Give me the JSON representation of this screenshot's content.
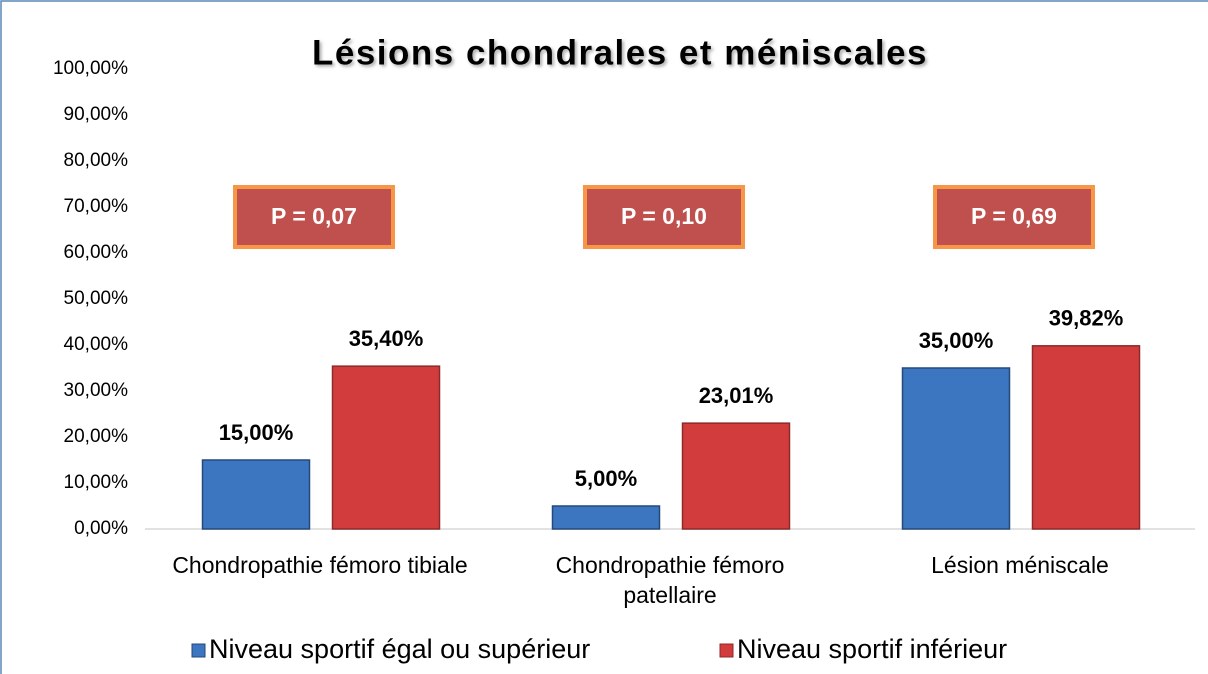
{
  "chart_data": {
    "type": "bar",
    "title": "Lésions chondrales et méniscales",
    "categories": [
      "Chondropathie fémoro tibiale",
      "Chondropathie fémoro patellaire",
      "Lésion méniscale"
    ],
    "series": [
      {
        "name": "Niveau sportif égal ou supérieur",
        "color": "#3c75c0",
        "values": [
          15,
          5,
          35
        ],
        "value_labels": [
          "15,00%",
          "5,00%",
          "35,00%"
        ]
      },
      {
        "name": "Niveau sportif inférieur",
        "color": "#d23c3c",
        "values": [
          35.4,
          23.01,
          39.82
        ],
        "value_labels": [
          "35,40%",
          "23,01%",
          "39,82%"
        ]
      }
    ],
    "annotations": [
      "P = 0,07",
      "P = 0,10",
      "P = 0,69"
    ],
    "ylim": [
      0,
      100
    ],
    "yticks": [
      {
        "value": 0,
        "label": "0,00%"
      },
      {
        "value": 10,
        "label": "10,00%"
      },
      {
        "value": 20,
        "label": "20,00%"
      },
      {
        "value": 30,
        "label": "30,00%"
      },
      {
        "value": 40,
        "label": "40,00%"
      },
      {
        "value": 50,
        "label": "50,00%"
      },
      {
        "value": 60,
        "label": "60,00%"
      },
      {
        "value": 70,
        "label": "70,00%"
      },
      {
        "value": 80,
        "label": "80,00%"
      },
      {
        "value": 90,
        "label": "90,00%"
      },
      {
        "value": 100,
        "label": "100,00%"
      }
    ],
    "grid": false,
    "legend": "bottom"
  }
}
